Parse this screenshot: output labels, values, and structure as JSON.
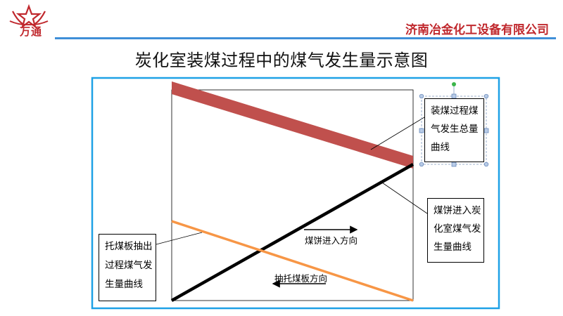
{
  "header": {
    "logo_text": "万通",
    "company": "济南冶金化工设备有限公司",
    "brand_color": "#c0282d",
    "rule_color": "#3f8fd8"
  },
  "title": "炭化室装煤过程中的煤气发生量示意图",
  "diagram": {
    "frame_color": "#1ea1e6",
    "lines": {
      "total": {
        "color": "#c0504d"
      },
      "coal_cake": {
        "color": "#000000"
      },
      "plate": {
        "color": "#f79646"
      }
    },
    "callouts": {
      "total": [
        "装煤过程煤",
        "气发生总量",
        "曲线"
      ],
      "coal_cake": [
        "煤饼进入炭",
        "化室煤气发",
        "生量曲线"
      ],
      "plate": [
        "托煤板抽出",
        "过程煤气发",
        "生量曲线"
      ]
    },
    "arrows": {
      "coal_cake_direction": "煤饼进入方向",
      "plate_direction": "抽托煤板方向"
    }
  }
}
